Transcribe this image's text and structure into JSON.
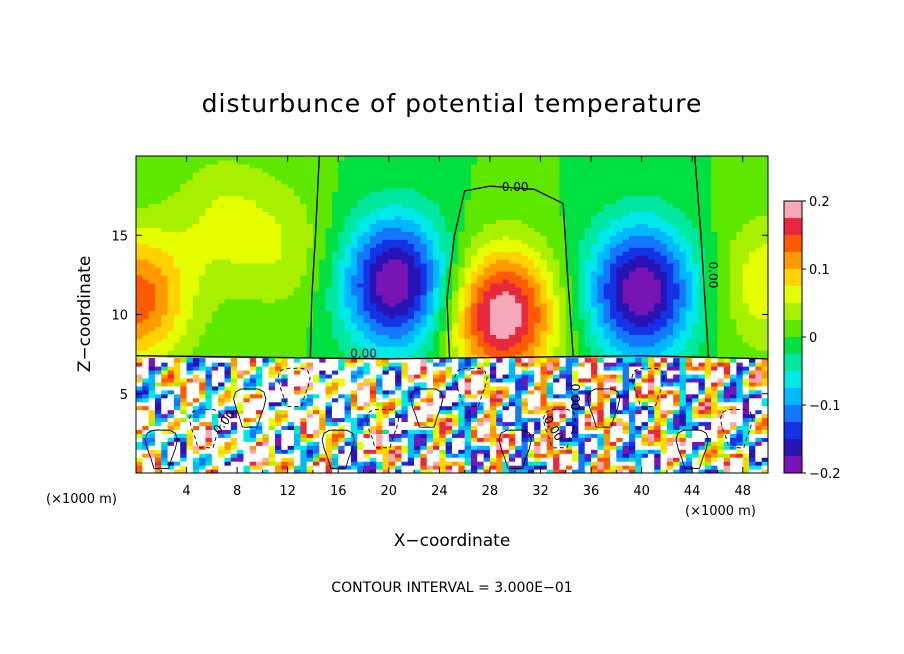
{
  "chart_data": {
    "type": "heatmap",
    "title": "disturbunce of potential temperature",
    "xlabel": "X−coordinate",
    "ylabel": "Z−coordinate",
    "x_unit_left": "(×1000 m)",
    "x_unit_right": "(×1000 m)",
    "xlim": [
      0,
      50
    ],
    "ylim": [
      0,
      20
    ],
    "xticks": [
      4,
      8,
      12,
      16,
      20,
      24,
      28,
      32,
      36,
      40,
      44,
      48
    ],
    "xtick_labels": [
      "4",
      "8",
      "12",
      "16",
      "20",
      "24",
      "28",
      "32",
      "36",
      "40",
      "44",
      "48"
    ],
    "yticks": [
      5,
      10,
      15
    ],
    "ytick_labels": [
      "5",
      "10",
      "15"
    ],
    "colorbar": {
      "range": [
        -0.2,
        0.2
      ],
      "ticks": [
        0.2,
        0.1,
        0,
        -0.1,
        -0.2
      ],
      "tick_labels": [
        "0.2",
        "0.1",
        "0",
        "−0.1",
        "−0.2"
      ],
      "colors": [
        "#f7a8b8",
        "#e8283c",
        "#ff5a00",
        "#ff9a00",
        "#ffd200",
        "#e5ff00",
        "#a6f000",
        "#5ee800",
        "#00e040",
        "#00e8a0",
        "#00e8e8",
        "#00b8ff",
        "#1478ff",
        "#1432e6",
        "#2814b4",
        "#7814b4"
      ]
    },
    "contour_labels": [
      "0.00",
      "0.00",
      "0.00",
      "0.00",
      "0.00",
      "0.00"
    ],
    "contour_interval": "CONTOUR INTERVAL = 3.000E−01",
    "field_features": [
      {
        "x": 0,
        "z": 11,
        "value": 0.14
      },
      {
        "x": 7,
        "z": 16,
        "value": 0.05
      },
      {
        "x": 12,
        "z": 14,
        "value": 0.04
      },
      {
        "x": 20.5,
        "z": 12,
        "value": -0.2
      },
      {
        "x": 29,
        "z": 10,
        "value": 0.2
      },
      {
        "x": 40,
        "z": 11.5,
        "value": -0.2
      },
      {
        "x": 50,
        "z": 12,
        "value": 0.07
      }
    ]
  }
}
